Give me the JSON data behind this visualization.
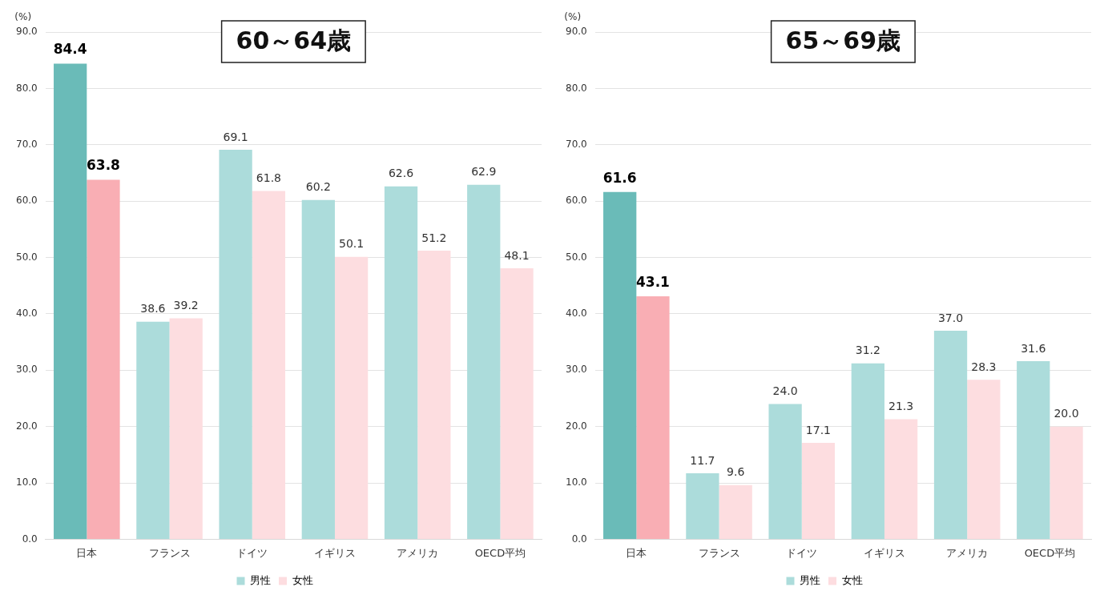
{
  "chart_data": [
    {
      "type": "bar",
      "title": "60～64歳",
      "ylabel": "(%)",
      "categories": [
        "日本",
        "フランス",
        "ドイツ",
        "イギリス",
        "アメリカ",
        "OECD平均"
      ],
      "series": [
        {
          "name": "男性",
          "color": "#acdcdb",
          "colors": [
            "#6abbb8",
            "#acdcdb",
            "#acdcdb",
            "#acdcdb",
            "#acdcdb",
            "#acdcdb"
          ],
          "values": [
            84.4,
            38.6,
            69.1,
            60.2,
            62.6,
            62.9
          ],
          "value_labels": [
            "84.4",
            "38.6",
            "69.1",
            "60.2",
            "62.6",
            "62.9"
          ]
        },
        {
          "name": "女性",
          "color": "#fddde0",
          "colors": [
            "#f9aeb4",
            "#fddde0",
            "#fddde0",
            "#fddde0",
            "#fddde0",
            "#fddde0"
          ],
          "values": [
            63.8,
            39.2,
            61.8,
            50.1,
            51.2,
            48.1
          ],
          "value_labels": [
            "63.8",
            "39.2",
            "61.8",
            "50.1",
            "51.2",
            "48.1"
          ]
        }
      ],
      "ylim": [
        0,
        90
      ],
      "yticks": [
        {
          "value": 0,
          "label": "0.0"
        },
        {
          "value": 10,
          "label": "10.0"
        },
        {
          "value": 20,
          "label": "20.0"
        },
        {
          "value": 30,
          "label": "30.0"
        },
        {
          "value": 40,
          "label": "40.0"
        },
        {
          "value": 50,
          "label": "50.0"
        },
        {
          "value": 60,
          "label": "60.0"
        },
        {
          "value": 70,
          "label": "70.0"
        },
        {
          "value": 80,
          "label": "80.0"
        },
        {
          "value": 90,
          "label": "90.0"
        }
      ],
      "grid": "y",
      "legend": "bottom"
    },
    {
      "type": "bar",
      "title": "65～69歳",
      "ylabel": "(%)",
      "categories": [
        "日本",
        "フランス",
        "ドイツ",
        "イギリス",
        "アメリカ",
        "OECD平均"
      ],
      "series": [
        {
          "name": "男性",
          "color": "#acdcdb",
          "colors": [
            "#6abbb8",
            "#acdcdb",
            "#acdcdb",
            "#acdcdb",
            "#acdcdb",
            "#acdcdb"
          ],
          "values": [
            61.6,
            11.7,
            24.0,
            31.2,
            37.0,
            31.6
          ],
          "value_labels": [
            "61.6",
            "11.7",
            "24.0",
            "31.2",
            "37.0",
            "31.6"
          ]
        },
        {
          "name": "女性",
          "color": "#fddde0",
          "colors": [
            "#f9aeb4",
            "#fddde0",
            "#fddde0",
            "#fddde0",
            "#fddde0",
            "#fddde0"
          ],
          "values": [
            43.1,
            9.6,
            17.1,
            21.3,
            28.3,
            20.0
          ],
          "value_labels": [
            "43.1",
            "9.6",
            "17.1",
            "21.3",
            "28.3",
            "20.0"
          ]
        }
      ],
      "ylim": [
        0,
        90
      ],
      "yticks": [
        {
          "value": 0,
          "label": "0.0"
        },
        {
          "value": 10,
          "label": "10.0"
        },
        {
          "value": 20,
          "label": "20.0"
        },
        {
          "value": 30,
          "label": "30.0"
        },
        {
          "value": 40,
          "label": "40.0"
        },
        {
          "value": 50,
          "label": "50.0"
        },
        {
          "value": 60,
          "label": "60.0"
        },
        {
          "value": 70,
          "label": "70.0"
        },
        {
          "value": 80,
          "label": "80.0"
        },
        {
          "value": 90,
          "label": "90.0"
        }
      ],
      "grid": "y",
      "legend": "bottom"
    }
  ]
}
